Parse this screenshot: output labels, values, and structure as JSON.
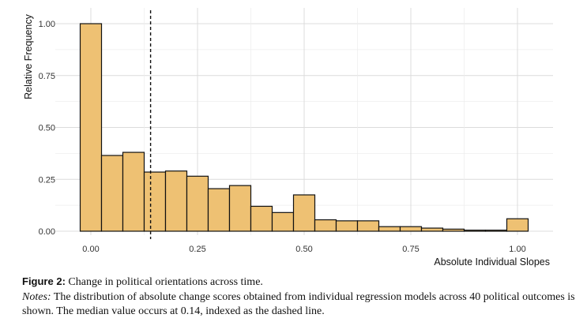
{
  "chart_data": {
    "type": "bar",
    "subtype": "histogram",
    "title": "",
    "xlabel": "Absolute Individual Slopes",
    "ylabel": "Relative Frequency",
    "xlim": [
      -0.08,
      1.08
    ],
    "ylim": [
      0,
      1.05
    ],
    "bin_width": 0.05,
    "x_ticks": [
      0,
      0.25,
      0.5,
      0.75,
      1.0
    ],
    "x_tick_labels": [
      "0.00",
      "0.25",
      "0.50",
      "0.75",
      "1.00"
    ],
    "y_ticks": [
      0,
      0.25,
      0.5,
      0.75,
      1.0
    ],
    "y_tick_labels": [
      "0.00",
      "0.25",
      "0.50",
      "0.75",
      "1.00"
    ],
    "bins": [
      {
        "x": 0.0,
        "value": 1.0
      },
      {
        "x": 0.05,
        "value": 0.365
      },
      {
        "x": 0.1,
        "value": 0.38
      },
      {
        "x": 0.15,
        "value": 0.285
      },
      {
        "x": 0.2,
        "value": 0.29
      },
      {
        "x": 0.25,
        "value": 0.265
      },
      {
        "x": 0.3,
        "value": 0.205
      },
      {
        "x": 0.35,
        "value": 0.22
      },
      {
        "x": 0.4,
        "value": 0.12
      },
      {
        "x": 0.45,
        "value": 0.09
      },
      {
        "x": 0.5,
        "value": 0.175
      },
      {
        "x": 0.55,
        "value": 0.055
      },
      {
        "x": 0.6,
        "value": 0.05
      },
      {
        "x": 0.65,
        "value": 0.05
      },
      {
        "x": 0.7,
        "value": 0.022
      },
      {
        "x": 0.75,
        "value": 0.022
      },
      {
        "x": 0.8,
        "value": 0.015
      },
      {
        "x": 0.85,
        "value": 0.01
      },
      {
        "x": 0.9,
        "value": 0.005
      },
      {
        "x": 0.95,
        "value": 0.005
      },
      {
        "x": 1.0,
        "value": 0.06
      }
    ],
    "median_line": {
      "x": 0.14,
      "style": "dashed"
    },
    "grid": true,
    "bar_fill": "#EEC173",
    "bar_stroke": "#111111",
    "grid_color": "#DCDCDC"
  },
  "caption": {
    "figure_label": "Figure 2:",
    "figure_title": "Change in political orientations across time.",
    "notes_label": "Notes:",
    "notes_text": "The distribution of absolute change scores obtained from individual regression models across 40 political outcomes is shown. The median value occurs at 0.14, indexed as the dashed line."
  }
}
